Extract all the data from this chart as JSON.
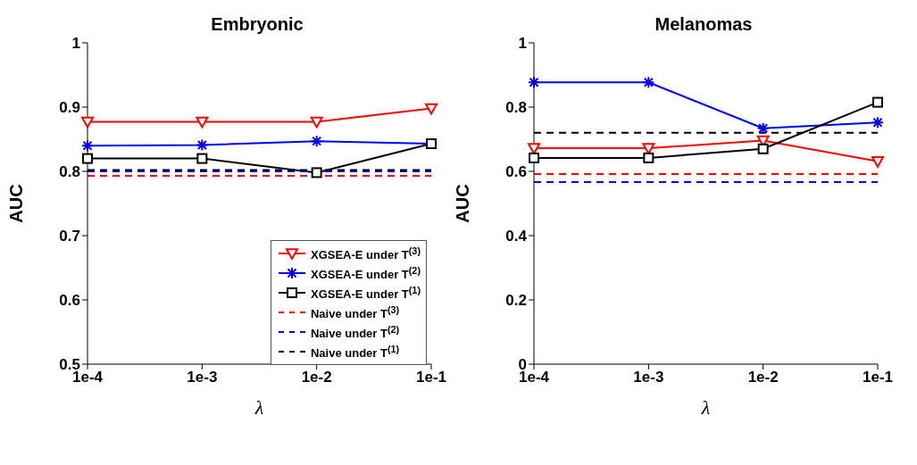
{
  "chart_data": [
    {
      "type": "line",
      "title": "Embryonic",
      "xlabel": "λ",
      "ylabel": "AUC",
      "categories": [
        "1e-4",
        "1e-3",
        "1e-2",
        "1e-1"
      ],
      "ylim": [
        0.5,
        1
      ],
      "yticks": [
        0.5,
        0.6,
        0.7,
        0.8,
        0.9,
        1
      ],
      "grid": false,
      "legend": "bottom right",
      "series": [
        {
          "name": "XGSEA-E under T$^{(3)}$",
          "color": "#ff0000",
          "marker": "triangle",
          "line_style": "solid",
          "values": [
            0.877,
            0.877,
            0.877,
            0.898
          ]
        },
        {
          "name": "XGSEA-E under T$^{(2)}$",
          "color": "#0000ff",
          "marker": "cross",
          "line_style": "solid",
          "values": [
            0.84,
            0.841,
            0.847,
            0.843
          ]
        },
        {
          "name": "XGSEA-E under T$^{(1)}$",
          "color": "#000000",
          "marker": "square",
          "line_style": "solid",
          "values": [
            0.82,
            0.82,
            0.798,
            0.843
          ]
        },
        {
          "name": "Naive under T$^{(3)}$",
          "color": "#ff0000",
          "marker": "none",
          "line_style": "dashed",
          "values": [
            0.793,
            0.793,
            0.793,
            0.793
          ]
        },
        {
          "name": "Naive under T$^{(2)}$",
          "color": "#0000ff",
          "marker": "none",
          "line_style": "dashed",
          "values": [
            0.8,
            0.8,
            0.8,
            0.8
          ]
        },
        {
          "name": "Naive under T$^{(1)}$",
          "color": "#000000",
          "marker": "none",
          "line_style": "dashed",
          "values": [
            0.802,
            0.802,
            0.802,
            0.802
          ]
        }
      ]
    },
    {
      "type": "line",
      "title": "Melanomas",
      "xlabel": "λ",
      "ylabel": "AUC",
      "categories": [
        "1e-4",
        "1e-3",
        "1e-2",
        "1e-1"
      ],
      "ylim": [
        0,
        1
      ],
      "yticks": [
        0,
        0.2,
        0.4,
        0.6,
        0.8,
        1
      ],
      "grid": false,
      "legend": false,
      "series": [
        {
          "color": "#ff0000",
          "marker": "triangle",
          "line_style": "solid",
          "values": [
            0.672,
            0.672,
            0.696,
            0.631
          ]
        },
        {
          "color": "#0000ff",
          "marker": "cross",
          "line_style": "solid",
          "values": [
            0.877,
            0.877,
            0.734,
            0.752
          ]
        },
        {
          "color": "#000000",
          "marker": "square",
          "line_style": "solid",
          "values": [
            0.642,
            0.642,
            0.67,
            0.815
          ]
        },
        {
          "color": "#ff0000",
          "marker": "none",
          "line_style": "dashed",
          "values": [
            0.592,
            0.592,
            0.592,
            0.592
          ]
        },
        {
          "color": "#0000ff",
          "marker": "none",
          "line_style": "dashed",
          "values": [
            0.567,
            0.567,
            0.567,
            0.567
          ]
        },
        {
          "color": "#000000",
          "marker": "none",
          "line_style": "dashed",
          "values": [
            0.72,
            0.72,
            0.72,
            0.72
          ]
        }
      ]
    }
  ]
}
